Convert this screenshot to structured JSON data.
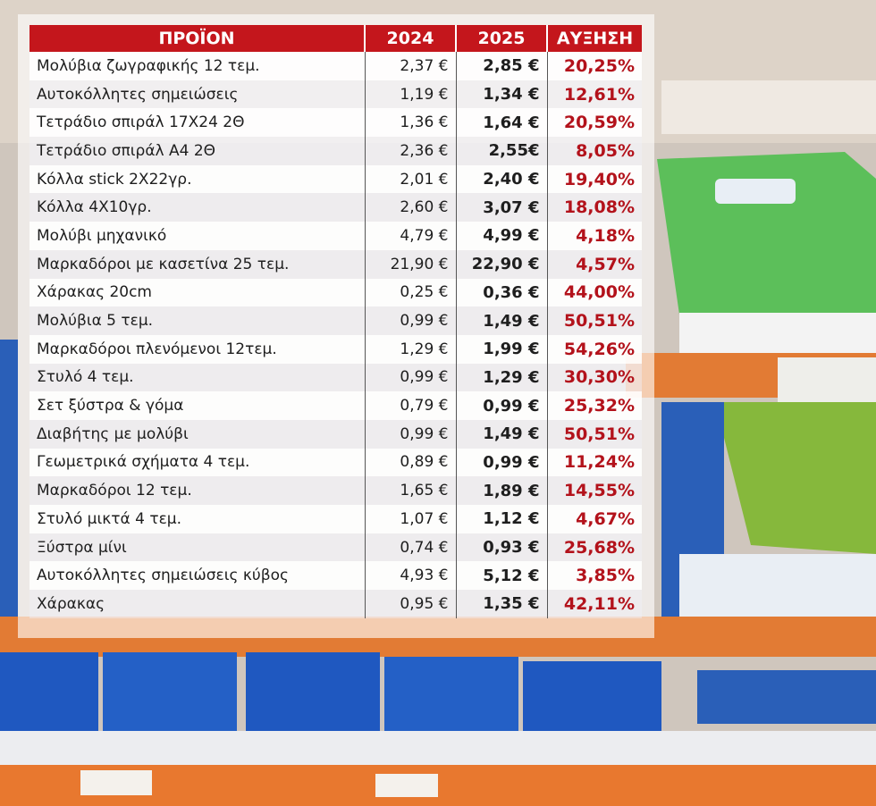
{
  "table": {
    "header": [
      "ΠΡΟΪΟΝ",
      "2024",
      "2025",
      "ΑΥΞΗΣΗ"
    ],
    "rows": [
      [
        "Μολύβια ζωγραφικής 12 τεμ.",
        "2,37 €",
        "2,85 €",
        "20,25%"
      ],
      [
        "Αυτοκόλλητες σημειώσεις",
        "1,19 €",
        "1,34 €",
        "12,61%"
      ],
      [
        "Τετράδιο σπιράλ 17Χ24 2Θ",
        "1,36 €",
        "1,64 €",
        "20,59%"
      ],
      [
        "Τετράδιο σπιράλ Α4 2Θ",
        "2,36 €",
        "2,55€",
        "8,05%"
      ],
      [
        "Κόλλα stick 2Χ22γρ.",
        "2,01 €",
        "2,40 €",
        "19,40%"
      ],
      [
        "Κόλλα 4Χ10γρ.",
        "2,60 €",
        "3,07 €",
        "18,08%"
      ],
      [
        "Μολύβι μηχανικό",
        "4,79 €",
        "4,99 €",
        "4,18%"
      ],
      [
        "Μαρκαδόροι με κασετίνα 25 τεμ.",
        "21,90 €",
        "22,90 €",
        "4,57%"
      ],
      [
        "Χάρακας 20cm",
        "0,25 €",
        "0,36 €",
        "44,00%"
      ],
      [
        "Μολύβια 5 τεμ.",
        "0,99 €",
        "1,49 €",
        "50,51%"
      ],
      [
        "Μαρκαδόροι πλενόμενοι 12τεμ.",
        "1,29 €",
        "1,99 €",
        "54,26%"
      ],
      [
        "Στυλό 4 τεμ.",
        "0,99 €",
        "1,29 €",
        "30,30%"
      ],
      [
        "Σετ ξύστρα & γόμα",
        "0,79 €",
        "0,99 €",
        "25,32%"
      ],
      [
        "Διαβήτης με μολύβι",
        "0,99 €",
        "1,49 €",
        "50,51%"
      ],
      [
        "Γεωμετρικά σχήματα 4 τεμ.",
        "0,89 €",
        "0,99 €",
        "11,24%"
      ],
      [
        "Μαρκαδόροι 12 τεμ.",
        "1,65 €",
        "1,89 €",
        "14,55%"
      ],
      [
        "Στυλό μικτά 4 τεμ.",
        "1,07 €",
        "1,12 €",
        "4,67%"
      ],
      [
        "Ξύστρα μίνι",
        "0,74 €",
        "0,93 €",
        "25,68%"
      ],
      [
        "Αυτοκόλλητες σημειώσεις κύβος",
        "4,93 €",
        "5,12 €",
        "3,85%"
      ],
      [
        "Χάρακας",
        "0,95 €",
        "1,35 €",
        "42,11%"
      ]
    ]
  }
}
